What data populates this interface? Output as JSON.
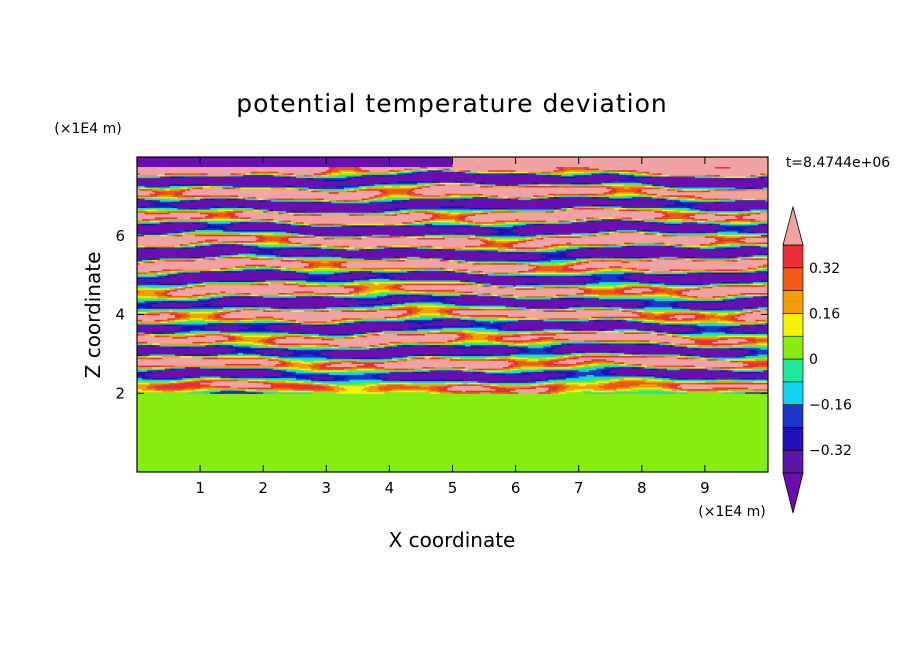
{
  "chart_data": {
    "type": "heatmap",
    "title": "potential temperature deviation",
    "xlabel": "X coordinate",
    "ylabel": "Z coordinate",
    "x_unit": "(×1E4 m)",
    "y_unit": "(×1E4 m)",
    "time_label": "t=8.4744e+06",
    "xlim": [
      0,
      10
    ],
    "ylim": [
      0,
      8
    ],
    "x_ticks": [
      1,
      2,
      3,
      4,
      5,
      6,
      7,
      8,
      9
    ],
    "y_ticks": [
      2,
      4,
      6
    ],
    "grid": false,
    "colorbar": {
      "extend": "both",
      "levels": [
        -0.4,
        -0.32,
        -0.24,
        -0.16,
        -0.08,
        0,
        0.08,
        0.16,
        0.24,
        0.32,
        0.4
      ],
      "tick_values": [
        0.32,
        0.16,
        0,
        -0.16,
        -0.32
      ],
      "tick_labels": [
        "0.32",
        "0.16",
        "0",
        "−0.16",
        "−0.32"
      ],
      "colors_low_to_high": [
        "#5a16a6",
        "#2310b4",
        "#1f37c8",
        "#12d2ec",
        "#1fe89c",
        "#86ec12",
        "#f5f208",
        "#f59e0a",
        "#ef5a16",
        "#e8303a"
      ],
      "under_color": "#6a0eb0",
      "over_color": "#f0a2a4"
    },
    "field_summary": {
      "z_0_to_2": "weak values, mostly 0 to 0.08 (green / light green)",
      "z_2_to_8": "layered structure alternating between > 0.4 (pink) and < -0.4 (purple), with full-spectrum transitions"
    }
  }
}
